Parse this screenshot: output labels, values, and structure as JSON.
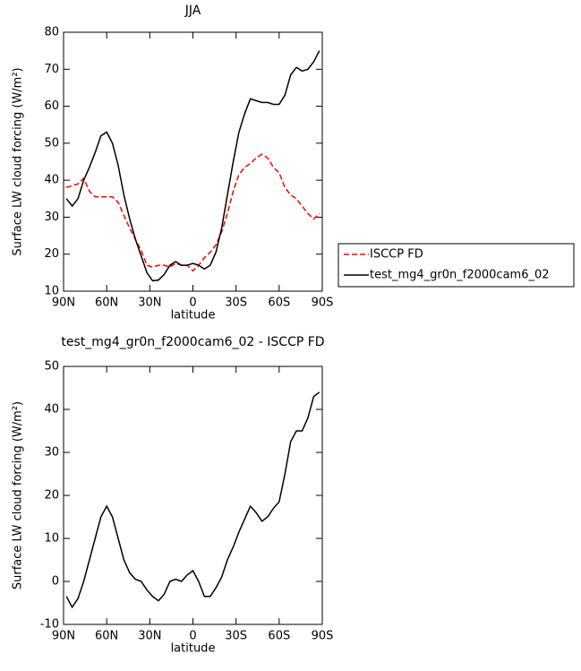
{
  "chart_data": [
    {
      "type": "line",
      "title": "JJA",
      "xlabel": "latitude",
      "ylabel": "Surface LW cloud forcing (W/m²)",
      "x": [
        88,
        84,
        80,
        76,
        72,
        68,
        64,
        60,
        56,
        52,
        48,
        44,
        40,
        36,
        32,
        28,
        24,
        20,
        16,
        12,
        8,
        4,
        0,
        -4,
        -8,
        -12,
        -16,
        -20,
        -24,
        -28,
        -32,
        -36,
        -40,
        -44,
        -48,
        -52,
        -56,
        -60,
        -64,
        -68,
        -72,
        -76,
        -80,
        -84,
        -88
      ],
      "series": [
        {
          "name": "ISCCP FD",
          "color": "#ff0000",
          "linestyle": "dashed",
          "values": [
            38,
            38.5,
            39,
            40.5,
            37,
            35.5,
            35.5,
            35.5,
            35.5,
            34,
            30.5,
            27,
            24,
            21,
            17,
            16.5,
            17,
            17,
            16.5,
            17.5,
            17,
            17,
            15.5,
            17,
            19,
            20.5,
            22.5,
            26,
            31,
            37,
            41.5,
            43.5,
            44.5,
            46,
            47,
            46,
            43.5,
            42,
            38,
            36,
            35,
            33,
            31,
            29.5,
            31
          ]
        },
        {
          "name": "test_mg4_gr0n_f2000cam6_02",
          "color": "#000000",
          "linestyle": "solid",
          "values": [
            35,
            33,
            35,
            40,
            43.5,
            47.5,
            52,
            53,
            50,
            44,
            36,
            29.5,
            24,
            19.5,
            15,
            12.8,
            13,
            14.5,
            17,
            18,
            17,
            17,
            17.5,
            17,
            16,
            17,
            20.5,
            27,
            36,
            45,
            53,
            58,
            62,
            61.5,
            61,
            61,
            60.5,
            60.5,
            63,
            68.5,
            70.5,
            69.5,
            70,
            72,
            75
          ]
        }
      ],
      "xlim": [
        90,
        -90
      ],
      "xticks": [
        {
          "value": 90,
          "label": "90N"
        },
        {
          "value": 60,
          "label": "60N"
        },
        {
          "value": 30,
          "label": "30N"
        },
        0,
        {
          "value": -30,
          "label": "30S"
        },
        {
          "value": -60,
          "label": "60S"
        },
        {
          "value": -90,
          "label": "90S"
        }
      ],
      "ylim": [
        10,
        80
      ],
      "yticks": [
        10,
        20,
        30,
        40,
        50,
        60,
        70,
        80
      ],
      "legend": "right"
    },
    {
      "type": "line",
      "title": "test_mg4_gr0n_f2000cam6_02 - ISCCP FD",
      "xlabel": "latitude",
      "ylabel": "Surface LW cloud forcing (W/m²)",
      "x": [
        88,
        84,
        80,
        76,
        72,
        68,
        64,
        60,
        56,
        52,
        48,
        44,
        40,
        36,
        32,
        28,
        24,
        20,
        16,
        12,
        8,
        4,
        0,
        -4,
        -8,
        -12,
        -16,
        -20,
        -24,
        -28,
        -32,
        -36,
        -40,
        -44,
        -48,
        -52,
        -56,
        -60,
        -64,
        -68,
        -72,
        -76,
        -80,
        -84,
        -88
      ],
      "series": [
        {
          "color": "#000000",
          "linestyle": "solid",
          "values": [
            -3.5,
            -6,
            -4,
            0,
            5,
            10,
            15,
            17.5,
            15,
            10,
            5,
            2,
            0.5,
            0,
            -2,
            -3.5,
            -4.5,
            -3,
            0,
            0.5,
            0,
            1.5,
            2.5,
            0,
            -3.5,
            -3.5,
            -1.5,
            1,
            5,
            8,
            11.5,
            14.5,
            17.5,
            16,
            14,
            15,
            17,
            18.5,
            25,
            32.5,
            35,
            35,
            38,
            43,
            44
          ]
        }
      ],
      "xlim": [
        90,
        -90
      ],
      "xticks": [
        {
          "value": 90,
          "label": "90N"
        },
        {
          "value": 60,
          "label": "60N"
        },
        {
          "value": 30,
          "label": "30N"
        },
        0,
        {
          "value": -30,
          "label": "30S"
        },
        {
          "value": -60,
          "label": "60S"
        },
        {
          "value": -90,
          "label": "90S"
        }
      ],
      "ylim": [
        -10,
        50
      ],
      "yticks": [
        -10,
        0,
        10,
        20,
        30,
        40,
        50
      ]
    }
  ]
}
